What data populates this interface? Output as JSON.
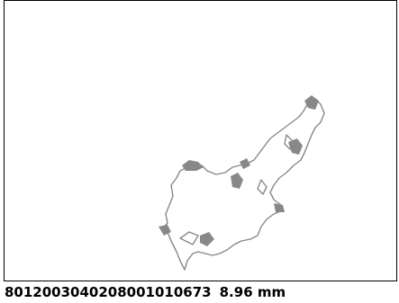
{
  "caption": {
    "id": "8012003040208001010673",
    "measure": "8.96 mm"
  }
}
